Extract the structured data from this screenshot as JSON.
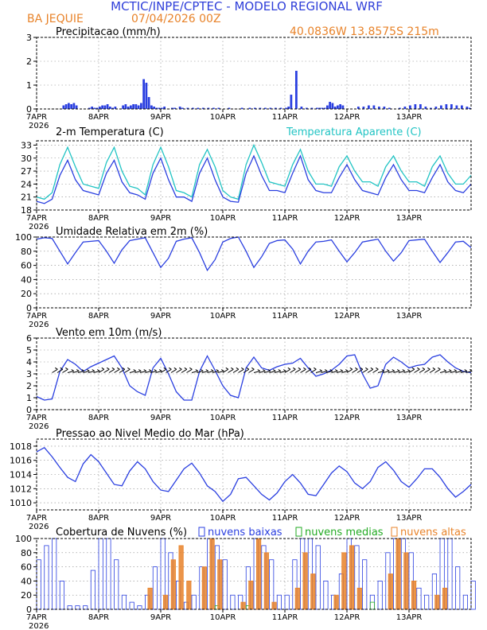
{
  "header": {
    "title": "MCTIC/INPE/CPTEC - MODELO REGIONAL WRF",
    "location": "BA JEQUIE",
    "run": "07/04/2026 00Z",
    "coords": "40.0836W 13.8575S 215m"
  },
  "colors": {
    "title": "#2f3fd9",
    "orange": "#e8832a",
    "blue": "#2a3fe0",
    "cyan": "#22c4c4",
    "green": "#22aa22",
    "axes": "#000000",
    "grid": "#888888"
  },
  "x_axis": {
    "day_labels": [
      "7APR",
      "8APR",
      "9APR",
      "10APR",
      "11APR",
      "12APR",
      "13APR"
    ],
    "year_label": "2026",
    "day_hours": [
      0,
      24,
      48,
      72,
      96,
      120,
      144
    ],
    "range_hours": [
      0,
      168
    ]
  },
  "chart_data": [
    {
      "id": "precip",
      "type": "bar",
      "title": "Precipitacao (mm/h)",
      "ylim": [
        0,
        3
      ],
      "yticks": [
        0,
        1,
        2,
        3
      ],
      "color": "#2a3fe0",
      "x_hours": [
        10,
        11,
        12,
        13,
        14,
        15,
        20,
        21,
        22,
        23,
        24,
        25,
        26,
        27,
        28,
        29,
        30,
        33,
        34,
        35,
        36,
        37,
        38,
        39,
        40,
        41,
        42,
        43,
        44,
        45,
        46,
        47,
        48,
        49,
        52,
        53,
        55,
        56,
        58,
        60,
        62,
        64,
        66,
        68,
        70,
        74,
        79,
        82,
        84,
        86,
        88,
        90,
        92,
        94,
        96,
        97,
        98,
        100,
        102,
        104,
        106,
        108,
        109,
        110,
        111,
        112,
        113,
        114,
        115,
        116,
        117,
        118,
        124,
        126,
        128,
        130,
        132,
        134,
        136,
        140,
        142,
        144,
        146,
        148,
        150,
        152,
        154,
        156,
        158,
        160,
        162,
        164,
        166,
        167
      ],
      "values": [
        0.15,
        0.2,
        0.25,
        0.2,
        0.25,
        0.15,
        0.05,
        0.1,
        0.05,
        0.05,
        0.1,
        0.15,
        0.15,
        0.2,
        0.1,
        0.05,
        0.1,
        0.15,
        0.2,
        0.1,
        0.15,
        0.2,
        0.2,
        0.15,
        0.25,
        1.25,
        1.1,
        0.5,
        0.15,
        0.1,
        0.05,
        0.05,
        0.05,
        0.1,
        0.05,
        0.05,
        0.1,
        0.05,
        0.05,
        0.05,
        0.05,
        0.05,
        0.05,
        0.05,
        0.05,
        0.05,
        0.05,
        0.05,
        0.05,
        0.05,
        0.05,
        0.05,
        0.05,
        0.05,
        0.05,
        0.1,
        0.6,
        1.6,
        0.1,
        0.05,
        0.05,
        0.05,
        0.05,
        0.05,
        0.05,
        0.15,
        0.3,
        0.25,
        0.1,
        0.15,
        0.2,
        0.15,
        0.1,
        0.1,
        0.15,
        0.15,
        0.1,
        0.1,
        0.05,
        0.05,
        0.1,
        0.15,
        0.2,
        0.2,
        0.1,
        0.05,
        0.1,
        0.15,
        0.2,
        0.2,
        0.15,
        0.15,
        0.1,
        0.05
      ]
    },
    {
      "id": "temperature",
      "type": "line",
      "title": "2-m Temperatura (C)",
      "ylim": [
        18,
        34
      ],
      "yticks": [
        18,
        21,
        24,
        27,
        30,
        33
      ],
      "x_hours": [
        0,
        3,
        6,
        9,
        12,
        15,
        18,
        21,
        24,
        27,
        30,
        33,
        36,
        39,
        42,
        45,
        48,
        51,
        54,
        57,
        60,
        63,
        66,
        69,
        72,
        75,
        78,
        81,
        84,
        87,
        90,
        93,
        96,
        99,
        102,
        105,
        108,
        111,
        114,
        117,
        120,
        123,
        126,
        129,
        132,
        135,
        138,
        141,
        144,
        147,
        150,
        153,
        156,
        159,
        162,
        165,
        168
      ],
      "series": [
        {
          "name": "2-m Temperatura (C)",
          "color": "#2a3fe0",
          "values": [
            20.0,
            19.5,
            20.5,
            26.0,
            29.5,
            25.0,
            22.5,
            22.0,
            21.5,
            26.5,
            29.5,
            24.5,
            22.0,
            21.5,
            20.5,
            26.5,
            30.0,
            25.0,
            21.0,
            21.0,
            20.0,
            26.5,
            30.0,
            25.0,
            21.0,
            20.0,
            19.8,
            26.5,
            30.5,
            26.0,
            22.5,
            22.5,
            22.0,
            26.5,
            30.5,
            25.0,
            22.5,
            22.0,
            22.0,
            25.5,
            28.5,
            25.0,
            22.5,
            22.0,
            21.5,
            25.5,
            28.5,
            25.0,
            22.5,
            22.5,
            22.0,
            25.5,
            28.5,
            24.5,
            22.5,
            22.0,
            24.0
          ]
        },
        {
          "name": "Temperatura Aparente (C)",
          "color": "#22c4c4",
          "values": [
            21.0,
            20.5,
            22.0,
            28.5,
            32.5,
            28.0,
            24.0,
            23.5,
            23.0,
            29.0,
            32.5,
            27.0,
            23.5,
            23.0,
            21.5,
            28.5,
            32.5,
            28.0,
            22.5,
            22.0,
            21.0,
            28.5,
            32.0,
            28.0,
            22.5,
            21.0,
            20.5,
            28.5,
            33.0,
            29.0,
            24.5,
            24.0,
            23.5,
            28.5,
            32.0,
            27.0,
            24.0,
            24.0,
            23.5,
            28.0,
            30.5,
            27.0,
            24.5,
            24.5,
            23.5,
            28.0,
            30.5,
            27.0,
            24.5,
            24.5,
            23.5,
            28.0,
            30.5,
            26.5,
            24.0,
            24.0,
            26.0
          ]
        }
      ]
    },
    {
      "id": "humidity",
      "type": "line",
      "title": "Umidade Relativa em 2m (%)",
      "ylim": [
        0,
        100
      ],
      "yticks": [
        0,
        20,
        40,
        60,
        80,
        100
      ],
      "color": "#2a3fe0",
      "x_hours": [
        0,
        3,
        6,
        9,
        12,
        15,
        18,
        21,
        24,
        27,
        30,
        33,
        36,
        39,
        42,
        45,
        48,
        51,
        54,
        57,
        60,
        63,
        66,
        69,
        72,
        75,
        78,
        81,
        84,
        87,
        90,
        93,
        96,
        99,
        102,
        105,
        108,
        111,
        114,
        117,
        120,
        123,
        126,
        129,
        132,
        135,
        138,
        141,
        144,
        147,
        150,
        153,
        156,
        159,
        162,
        165,
        168
      ],
      "values": [
        97,
        99,
        98,
        80,
        62,
        78,
        93,
        94,
        95,
        80,
        63,
        82,
        95,
        97,
        99,
        78,
        57,
        70,
        94,
        97,
        99,
        78,
        53,
        68,
        93,
        98,
        100,
        80,
        57,
        72,
        91,
        95,
        96,
        83,
        62,
        80,
        93,
        94,
        96,
        80,
        65,
        78,
        93,
        95,
        97,
        80,
        66,
        78,
        95,
        96,
        97,
        80,
        64,
        78,
        93,
        94,
        85
      ]
    },
    {
      "id": "wind",
      "type": "line",
      "title": "Vento em 10m (m/s)",
      "ylim": [
        0,
        6
      ],
      "yticks": [
        0,
        1,
        2,
        3,
        4,
        5,
        6
      ],
      "color": "#2a3fe0",
      "x_hours": [
        0,
        3,
        6,
        9,
        12,
        15,
        18,
        21,
        24,
        27,
        30,
        33,
        36,
        39,
        42,
        45,
        48,
        51,
        54,
        57,
        60,
        63,
        66,
        69,
        72,
        75,
        78,
        81,
        84,
        87,
        90,
        93,
        96,
        99,
        102,
        105,
        108,
        111,
        114,
        117,
        120,
        123,
        126,
        129,
        132,
        135,
        138,
        141,
        144,
        147,
        150,
        153,
        156,
        159,
        162,
        165,
        168
      ],
      "values": [
        1.1,
        0.8,
        0.9,
        3.2,
        4.2,
        3.8,
        3.2,
        3.6,
        3.9,
        4.2,
        4.5,
        3.5,
        2.0,
        1.5,
        1.2,
        3.5,
        4.3,
        3.0,
        1.5,
        0.8,
        0.8,
        3.2,
        4.5,
        3.3,
        2.0,
        1.2,
        1.0,
        3.5,
        4.4,
        3.5,
        3.3,
        3.6,
        3.8,
        3.9,
        4.3,
        3.5,
        2.8,
        3.0,
        3.3,
        3.8,
        4.5,
        4.6,
        3.0,
        1.8,
        2.0,
        3.8,
        4.4,
        4.0,
        3.5,
        3.7,
        3.8,
        4.4,
        4.6,
        4.0,
        3.5,
        3.2,
        3.1
      ]
    },
    {
      "id": "pressure",
      "type": "line",
      "title": "Pressao ao Nivel Medio do Mar (hPa)",
      "ylim": [
        1009,
        1019
      ],
      "yticks": [
        1010,
        1012,
        1014,
        1016,
        1018
      ],
      "color": "#2a3fe0",
      "x_hours": [
        0,
        3,
        6,
        9,
        12,
        15,
        18,
        21,
        24,
        27,
        30,
        33,
        36,
        39,
        42,
        45,
        48,
        51,
        54,
        57,
        60,
        63,
        66,
        69,
        72,
        75,
        78,
        81,
        84,
        87,
        90,
        93,
        96,
        99,
        102,
        105,
        108,
        111,
        114,
        117,
        120,
        123,
        126,
        129,
        132,
        135,
        138,
        141,
        144,
        147,
        150,
        153,
        156,
        159,
        162,
        165,
        168
      ],
      "values": [
        1017.2,
        1017.8,
        1016.5,
        1015.0,
        1013.6,
        1013.0,
        1015.5,
        1016.8,
        1015.8,
        1014.2,
        1012.6,
        1012.4,
        1014.5,
        1015.8,
        1014.8,
        1013.0,
        1011.8,
        1011.6,
        1013.2,
        1014.8,
        1015.6,
        1014.2,
        1012.4,
        1011.6,
        1010.2,
        1011.2,
        1013.4,
        1013.6,
        1012.4,
        1011.2,
        1010.4,
        1011.4,
        1013.0,
        1014.0,
        1012.8,
        1011.2,
        1011.0,
        1012.6,
        1014.2,
        1015.2,
        1014.4,
        1012.8,
        1012.0,
        1013.0,
        1015.0,
        1015.8,
        1014.6,
        1013.0,
        1012.2,
        1013.4,
        1014.8,
        1014.8,
        1013.6,
        1012.0,
        1010.8,
        1011.6,
        1012.6
      ]
    },
    {
      "id": "clouds",
      "type": "bar",
      "title": "Cobertura de Nuvens (%)",
      "ylim": [
        0,
        100
      ],
      "yticks": [
        0,
        20,
        40,
        60,
        80,
        100
      ],
      "x_hours": [
        0,
        3,
        6,
        9,
        12,
        15,
        18,
        21,
        24,
        27,
        30,
        33,
        36,
        39,
        42,
        45,
        48,
        51,
        54,
        57,
        60,
        63,
        66,
        69,
        72,
        75,
        78,
        81,
        84,
        87,
        90,
        93,
        96,
        99,
        102,
        105,
        108,
        111,
        114,
        117,
        120,
        123,
        126,
        129,
        132,
        135,
        138,
        141,
        144,
        147,
        150,
        153,
        156,
        159,
        162,
        165,
        168
      ],
      "series": [
        {
          "name": "nuvens baixas",
          "color": "#2a3fe0",
          "values": [
            70,
            90,
            100,
            40,
            5,
            5,
            5,
            55,
            100,
            100,
            70,
            20,
            10,
            5,
            20,
            60,
            100,
            80,
            40,
            10,
            20,
            60,
            100,
            90,
            70,
            20,
            20,
            60,
            100,
            90,
            70,
            20,
            20,
            70,
            100,
            100,
            90,
            40,
            20,
            50,
            100,
            90,
            70,
            20,
            40,
            80,
            100,
            100,
            80,
            30,
            20,
            50,
            100,
            100,
            60,
            20,
            40
          ]
        },
        {
          "name": "nuvens medias",
          "color": "#22aa22",
          "values": [
            0,
            0,
            0,
            0,
            0,
            0,
            0,
            0,
            0,
            0,
            0,
            0,
            0,
            0,
            0,
            0,
            0,
            0,
            0,
            0,
            0,
            0,
            0,
            5,
            0,
            0,
            0,
            5,
            0,
            0,
            0,
            0,
            0,
            0,
            0,
            0,
            0,
            0,
            0,
            0,
            0,
            0,
            0,
            10,
            0,
            0,
            0,
            0,
            0,
            0,
            0,
            0,
            0,
            0,
            0,
            0,
            0
          ]
        },
        {
          "name": "nuvens altas",
          "color": "#e8832a",
          "values": [
            0,
            0,
            0,
            0,
            0,
            0,
            0,
            0,
            0,
            0,
            0,
            0,
            0,
            0,
            30,
            0,
            20,
            70,
            90,
            40,
            0,
            60,
            100,
            70,
            0,
            0,
            10,
            40,
            100,
            80,
            10,
            0,
            0,
            30,
            80,
            50,
            0,
            0,
            20,
            80,
            90,
            30,
            0,
            0,
            0,
            50,
            100,
            80,
            40,
            0,
            0,
            20,
            30,
            0,
            0,
            0,
            0
          ]
        }
      ]
    }
  ]
}
